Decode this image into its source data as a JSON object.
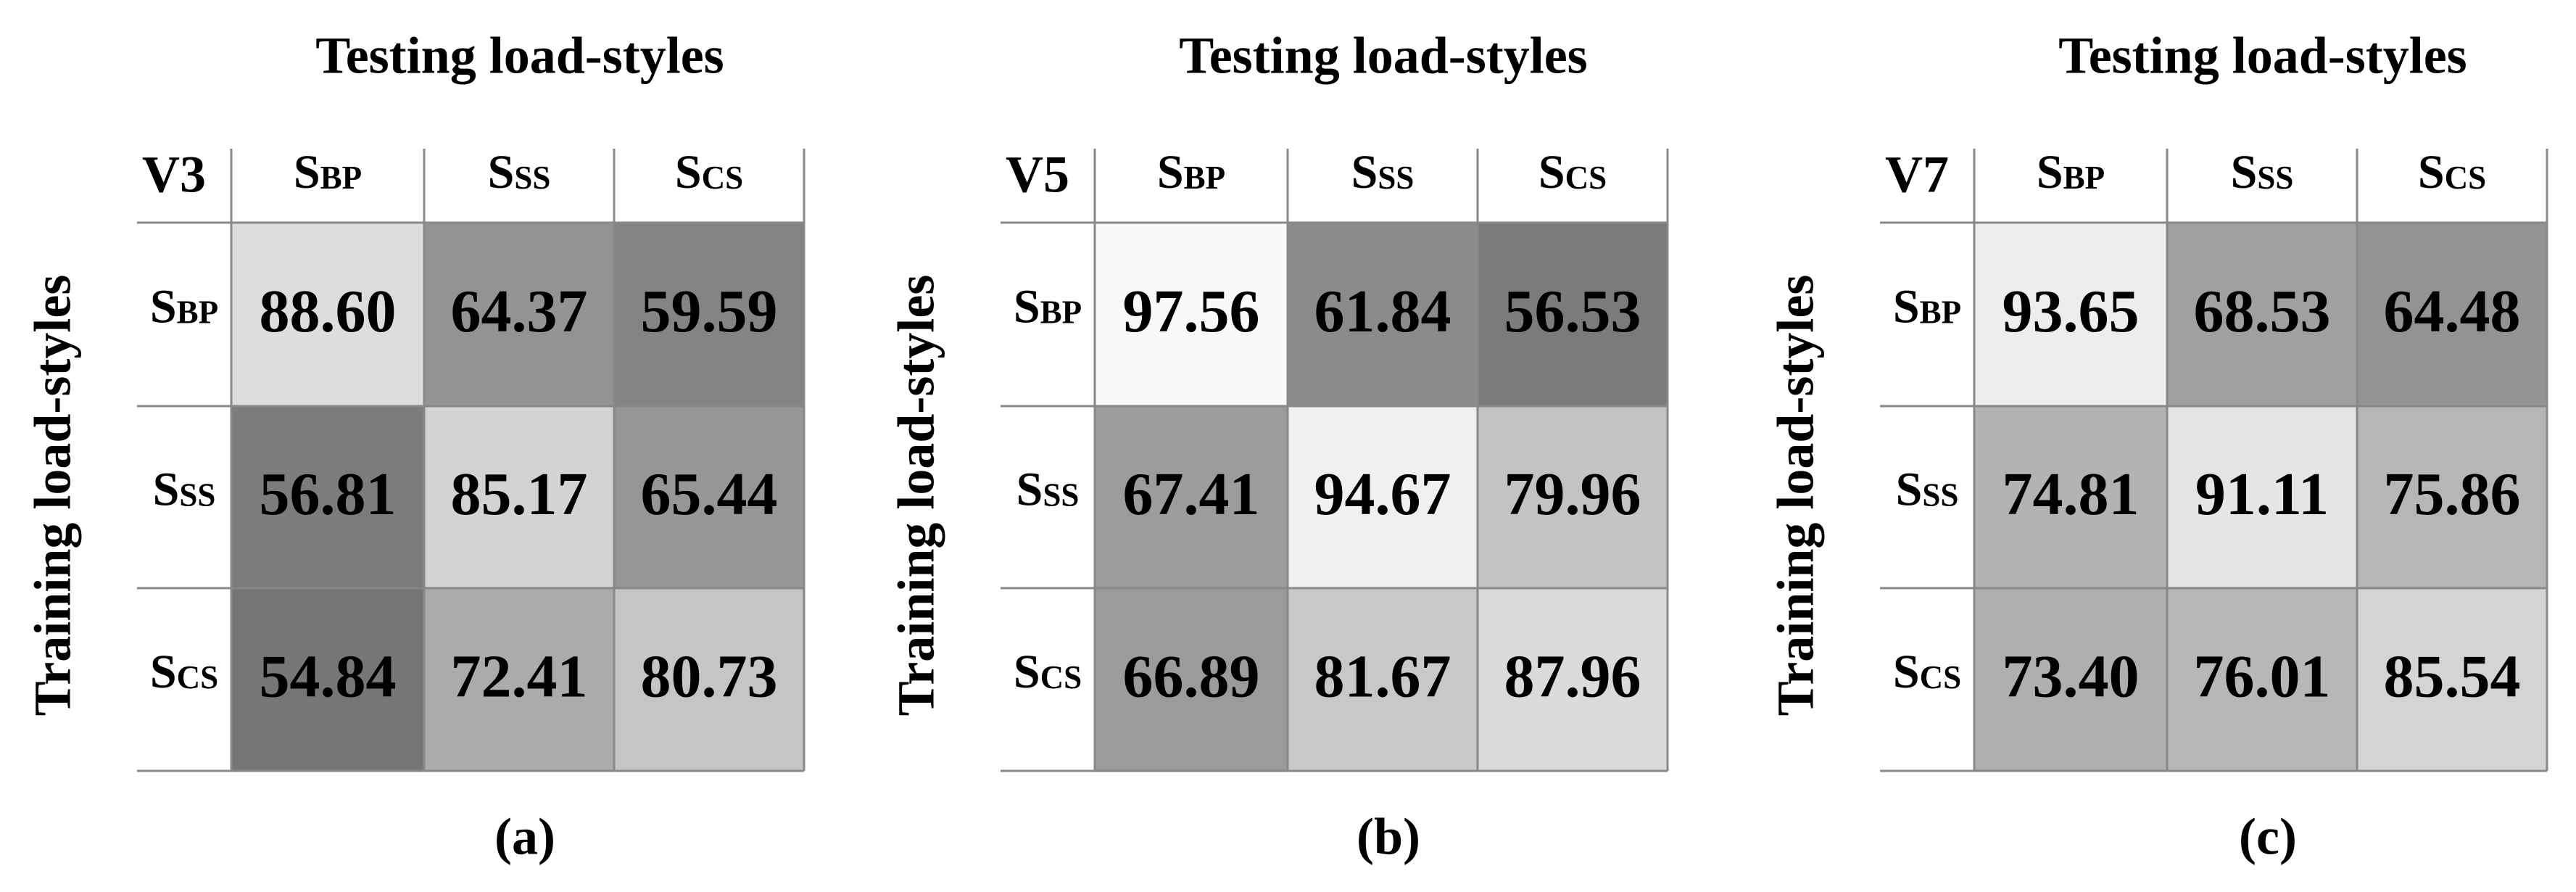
{
  "panels": [
    {
      "title": "Testing load-styles",
      "ylabel": "Training load-styles",
      "corner": "V3",
      "caption": "(a)",
      "columns": [
        {
          "main": "S",
          "sub": "BP"
        },
        {
          "main": "S",
          "sub": "SS"
        },
        {
          "main": "S",
          "sub": "CS"
        }
      ],
      "rows": [
        {
          "label": {
            "main": "S",
            "sub": "BP"
          },
          "values": [
            "88.60",
            "64.37",
            "59.59"
          ]
        },
        {
          "label": {
            "main": "S",
            "sub": "SS"
          },
          "values": [
            "56.81",
            "85.17",
            "65.44"
          ]
        },
        {
          "label": {
            "main": "S",
            "sub": "CS"
          },
          "values": [
            "54.84",
            "72.41",
            "80.73"
          ]
        }
      ]
    },
    {
      "title": "Testing load-styles",
      "ylabel": "Training load-styles",
      "corner": "V5",
      "caption": "(b)",
      "columns": [
        {
          "main": "S",
          "sub": "BP"
        },
        {
          "main": "S",
          "sub": "SS"
        },
        {
          "main": "S",
          "sub": "CS"
        }
      ],
      "rows": [
        {
          "label": {
            "main": "S",
            "sub": "BP"
          },
          "values": [
            "97.56",
            "61.84",
            "56.53"
          ]
        },
        {
          "label": {
            "main": "S",
            "sub": "SS"
          },
          "values": [
            "67.41",
            "94.67",
            "79.96"
          ]
        },
        {
          "label": {
            "main": "S",
            "sub": "CS"
          },
          "values": [
            "66.89",
            "81.67",
            "87.96"
          ]
        }
      ]
    },
    {
      "title": "Testing load-styles",
      "ylabel": "Training load-styles",
      "corner": "V7",
      "caption": "(c)",
      "columns": [
        {
          "main": "S",
          "sub": "BP"
        },
        {
          "main": "S",
          "sub": "SS"
        },
        {
          "main": "S",
          "sub": "CS"
        }
      ],
      "rows": [
        {
          "label": {
            "main": "S",
            "sub": "BP"
          },
          "values": [
            "93.65",
            "68.53",
            "64.48"
          ]
        },
        {
          "label": {
            "main": "S",
            "sub": "SS"
          },
          "values": [
            "74.81",
            "91.11",
            "75.86"
          ]
        },
        {
          "label": {
            "main": "S",
            "sub": "CS"
          },
          "values": [
            "73.40",
            "76.01",
            "85.54"
          ]
        }
      ]
    }
  ]
}
